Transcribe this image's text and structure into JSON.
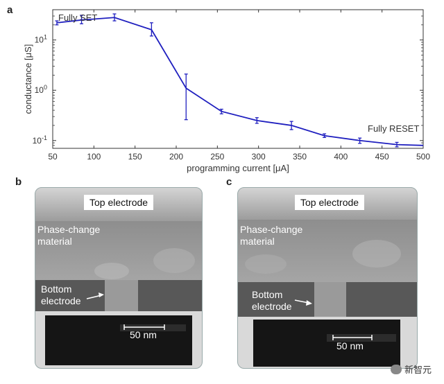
{
  "panels": {
    "a": "a",
    "b": "b",
    "c": "c"
  },
  "chart_data": {
    "type": "line",
    "xlabel": "programming current [μA]",
    "ylabel": "conductance [μS]",
    "yscale": "log",
    "xlim": [
      50,
      500
    ],
    "ylim": [
      0.07,
      40
    ],
    "x_ticks": [
      50,
      100,
      150,
      200,
      250,
      300,
      350,
      400,
      450,
      500
    ],
    "y_ticks": [
      {
        "value": 0.1,
        "base": "10",
        "exp": "-1"
      },
      {
        "value": 1,
        "base": "10",
        "exp": "0"
      },
      {
        "value": 10,
        "base": "10",
        "exp": "1"
      }
    ],
    "grid": false,
    "color": "#1f1fbf",
    "series": [
      {
        "x": [
          55,
          85,
          125,
          170,
          212,
          255,
          298,
          340,
          380,
          423,
          468,
          500
        ],
        "y": [
          22,
          25,
          28,
          16,
          1.1,
          0.38,
          0.25,
          0.2,
          0.125,
          0.1,
          0.083,
          0.08
        ],
        "err_low": [
          20,
          21,
          24,
          12,
          0.26,
          0.34,
          0.22,
          0.165,
          0.115,
          0.088,
          0.075,
          null
        ],
        "err_high": [
          24,
          31,
          33,
          22,
          2.1,
          0.42,
          0.285,
          0.24,
          0.136,
          0.112,
          0.092,
          null
        ]
      }
    ],
    "annotations": [
      "Fully SET",
      "Fully RESET"
    ]
  },
  "tem_b": {
    "top_electrode": "Top electrode",
    "pcm_label": "Phase-change\nmaterial",
    "bottom_label": "Bottom\nelectrode",
    "scale": "50 nm"
  },
  "tem_c": {
    "top_electrode": "Top electrode",
    "pcm_label": "Phase-change\nmaterial",
    "bottom_label": "Bottom\nelectrode",
    "scale": "50 nm"
  },
  "watermark": "新智元"
}
